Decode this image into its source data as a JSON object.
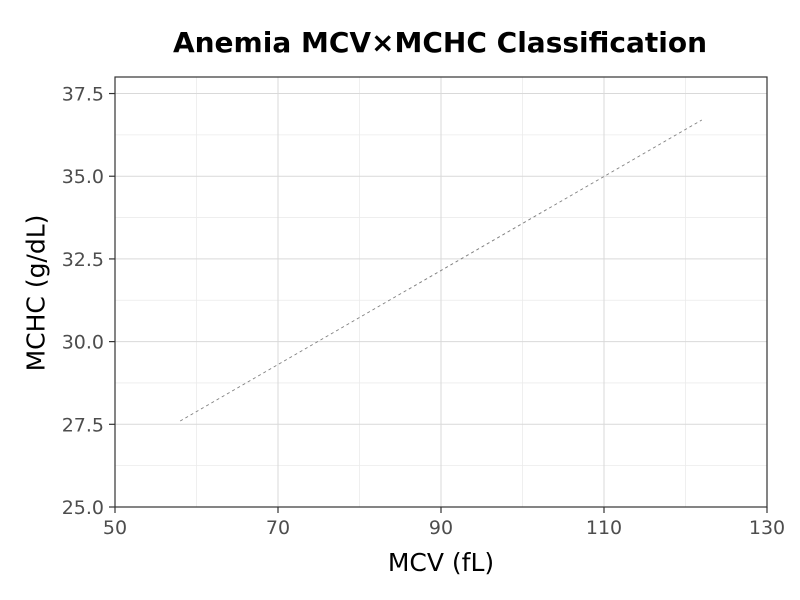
{
  "chart_data": {
    "type": "line",
    "title": "Anemia MCV×MCHC Classification",
    "xlabel": "MCV (fL)",
    "ylabel": "MCHC (g/dL)",
    "xlim": [
      50,
      130
    ],
    "ylim": [
      25,
      38
    ],
    "x_ticks": [
      50,
      70,
      90,
      110,
      130
    ],
    "x_tick_labels": [
      "50",
      "70",
      "90",
      "110",
      "130"
    ],
    "y_ticks": [
      25,
      27.5,
      30,
      32.5,
      35,
      37.5
    ],
    "y_tick_labels": [
      "25.0",
      "27.5",
      "30.0",
      "32.5",
      "35.0",
      "37.5"
    ],
    "grid": true,
    "series": [
      {
        "line_style": "dashed",
        "color": "#7f7f7f",
        "x": [
          58,
          122
        ],
        "y": [
          27.6,
          36.7
        ]
      }
    ]
  }
}
